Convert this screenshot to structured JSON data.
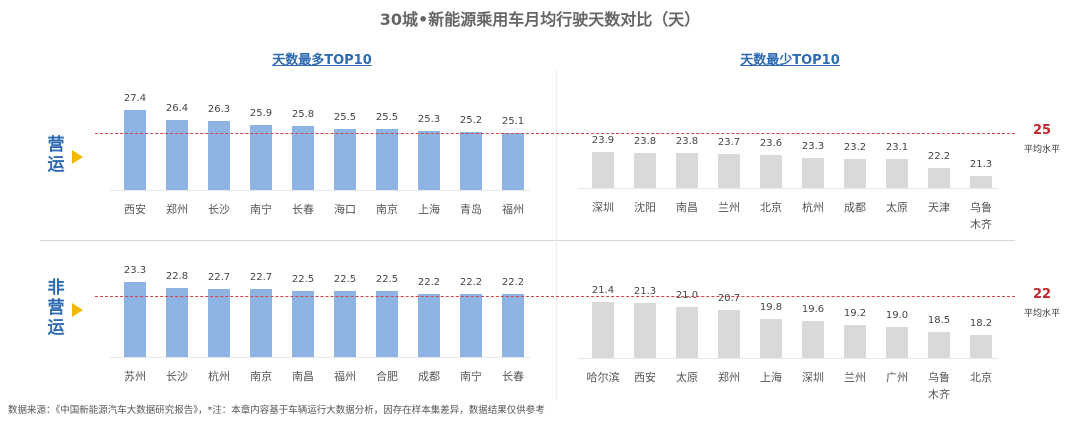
{
  "chart_data": [
    {
      "type": "bar",
      "title": "30城•新能源乘用车月均行驶天数对比（天）",
      "panel": "天数最多TOP10",
      "row": "营运",
      "color": "#8db4e2",
      "categories": [
        "西安",
        "郑州",
        "长沙",
        "南宁",
        "长春",
        "海口",
        "南京",
        "上海",
        "青岛",
        "福州"
      ],
      "values": [
        27.4,
        26.4,
        26.3,
        25.9,
        25.8,
        25.5,
        25.5,
        25.3,
        25.2,
        25.1
      ],
      "reference_line": 25
    },
    {
      "type": "bar",
      "panel": "天数最少TOP10",
      "row": "营运",
      "color": "#d9d9d9",
      "categories": [
        "深圳",
        "沈阳",
        "南昌",
        "兰州",
        "北京",
        "杭州",
        "成都",
        "太原",
        "天津",
        "乌鲁\n木齐"
      ],
      "values": [
        23.9,
        23.8,
        23.8,
        23.7,
        23.6,
        23.3,
        23.2,
        23.1,
        22.2,
        21.3
      ],
      "reference_line": 25
    },
    {
      "type": "bar",
      "panel": "天数最多TOP10",
      "row": "非营运",
      "color": "#8db4e2",
      "categories": [
        "苏州",
        "长沙",
        "杭州",
        "南京",
        "南昌",
        "福州",
        "合肥",
        "成都",
        "南宁",
        "长春"
      ],
      "values": [
        23.3,
        22.8,
        22.7,
        22.7,
        22.5,
        22.5,
        22.5,
        22.2,
        22.2,
        22.2
      ],
      "reference_line": 22
    },
    {
      "type": "bar",
      "panel": "天数最少TOP10",
      "row": "非营运",
      "color": "#d9d9d9",
      "categories": [
        "哈尔滨",
        "西安",
        "太原",
        "郑州",
        "上海",
        "深圳",
        "兰州",
        "广州",
        "乌鲁\n木齐",
        "北京"
      ],
      "values": [
        21.4,
        21.3,
        21.0,
        20.7,
        19.8,
        19.6,
        19.2,
        19.0,
        18.5,
        18.2
      ],
      "reference_line": 22
    }
  ],
  "title": "30城•新能源乘用车月均行驶天数对比（天）",
  "subtitles": [
    "天数最多TOP10",
    "天数最少TOP10"
  ],
  "rows": [
    {
      "label": "营运",
      "avg": "25",
      "avg_label": "平均水平"
    },
    {
      "label": "非营运",
      "avg": "22",
      "avg_label": "平均水平"
    }
  ],
  "footer": "数据来源：《中国新能源汽车大数据研究报告》，*注：本章内容基于车辆运行大数据分析，因存在样本集差异，数据结果仅供参考"
}
